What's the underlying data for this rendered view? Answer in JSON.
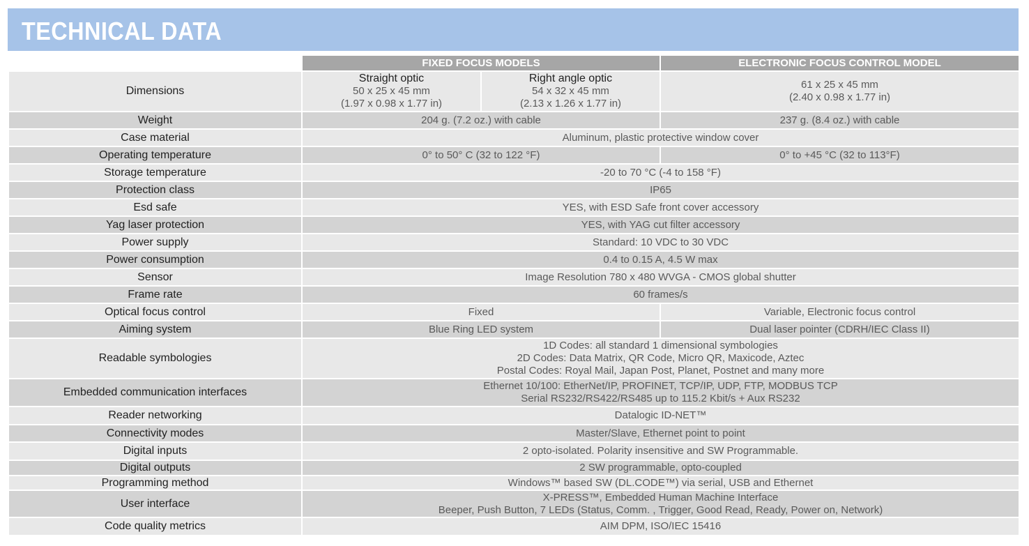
{
  "title": "TECHNICAL DATA",
  "headers": {
    "fixed": "FIXED FOCUS MODELS",
    "electronic": "ELECTRONIC FOCUS CONTROL MODEL"
  },
  "colors": {
    "banner": "#a6c3e8",
    "header": "#a6a6a6",
    "row_light": "#e8e8e8",
    "row_dark": "#d3d3d3"
  },
  "rows": [
    {
      "label": "Dimensions",
      "cells": [
        {
          "span": 1,
          "title": "Straight optic",
          "lines": [
            "50 x 25 x 45 mm",
            "(1.97 x 0.98 x 1.77 in)"
          ]
        },
        {
          "span": 1,
          "title": "Right angle optic",
          "lines": [
            "54 x 32 x 45 mm",
            "(2.13 x 1.26 x 1.77 in)"
          ]
        },
        {
          "span": 1,
          "lines": [
            "61 x 25 x 45 mm",
            "(2.40 x 0.98 x 1.77 in)"
          ]
        }
      ]
    },
    {
      "label": "Weight",
      "cells": [
        {
          "span": 2,
          "lines": [
            "204 g. (7.2 oz.) with cable"
          ]
        },
        {
          "span": 1,
          "lines": [
            "237 g. (8.4 oz.) with cable"
          ]
        }
      ]
    },
    {
      "label": "Case material",
      "cells": [
        {
          "span": 3,
          "lines": [
            "Aluminum, plastic protective window cover"
          ]
        }
      ]
    },
    {
      "label": "Operating temperature",
      "cells": [
        {
          "span": 2,
          "lines": [
            "0° to 50° C (32 to 122 °F)"
          ]
        },
        {
          "span": 1,
          "lines": [
            "0° to +45 °C (32 to 113°F)"
          ]
        }
      ]
    },
    {
      "label": "Storage temperature",
      "cells": [
        {
          "span": 3,
          "lines": [
            "-20 to 70 °C (-4 to 158 °F)"
          ]
        }
      ]
    },
    {
      "label": "Protection class",
      "cells": [
        {
          "span": 3,
          "lines": [
            "IP65"
          ]
        }
      ]
    },
    {
      "label": "Esd safe",
      "cells": [
        {
          "span": 3,
          "lines": [
            "YES, with ESD Safe front cover accessory"
          ]
        }
      ]
    },
    {
      "label": "Yag laser protection",
      "cells": [
        {
          "span": 3,
          "lines": [
            "YES, with YAG cut filter accessory"
          ]
        }
      ]
    },
    {
      "label": "Power supply",
      "cells": [
        {
          "span": 3,
          "lines": [
            "Standard: 10 VDC to 30 VDC"
          ]
        }
      ]
    },
    {
      "label": "Power consumption",
      "cells": [
        {
          "span": 3,
          "lines": [
            "0.4 to 0.15 A, 4.5 W max"
          ]
        }
      ]
    },
    {
      "label": "Sensor",
      "cells": [
        {
          "span": 3,
          "lines": [
            "Image Resolution 780 x 480 WVGA -  CMOS global shutter"
          ]
        }
      ]
    },
    {
      "label": "Frame rate",
      "cells": [
        {
          "span": 3,
          "lines": [
            "60 frames/s"
          ]
        }
      ]
    },
    {
      "label": "Optical focus control",
      "cells": [
        {
          "span": 2,
          "lines": [
            "Fixed"
          ]
        },
        {
          "span": 1,
          "lines": [
            "Variable,  Electronic focus control"
          ]
        }
      ]
    },
    {
      "label": "Aiming system",
      "cells": [
        {
          "span": 2,
          "lines": [
            "Blue Ring LED system"
          ]
        },
        {
          "span": 1,
          "lines": [
            "Dual laser pointer (CDRH/IEC Class II)"
          ]
        }
      ]
    },
    {
      "label": "Readable symbologies",
      "cells": [
        {
          "span": 3,
          "lines": [
            "1D Codes:  all standard 1 dimensional symbologies",
            "2D Codes: Data Matrix, QR Code, Micro QR, Maxicode, Aztec",
            "Postal Codes: Royal Mail, Japan Post, Planet, Postnet and many more"
          ]
        }
      ]
    },
    {
      "label": "Embedded communication interfaces",
      "cells": [
        {
          "span": 3,
          "lines": [
            "Ethernet 10/100: EtherNet/IP, PROFINET, TCP/IP, UDP, FTP, MODBUS TCP",
            "Serial RS232/RS422/RS485 up to 115.2 Kbit/s + Aux RS232"
          ]
        }
      ]
    },
    {
      "label": "Reader networking",
      "cells": [
        {
          "span": 3,
          "lines": [
            "Datalogic ID-NET™"
          ]
        }
      ]
    },
    {
      "label": "Connectivity modes",
      "cells": [
        {
          "span": 3,
          "lines": [
            "Master/Slave, Ethernet point to point"
          ]
        }
      ]
    },
    {
      "label": "Digital inputs",
      "cells": [
        {
          "span": 3,
          "lines": [
            "2 opto-isolated. Polarity insensitive and SW Programmable."
          ]
        }
      ]
    },
    {
      "label": "Digital outputs",
      "cells": [
        {
          "span": 3,
          "lines": [
            "2 SW programmable, opto-coupled"
          ]
        }
      ]
    },
    {
      "label": "Programming method",
      "cells": [
        {
          "span": 3,
          "lines": [
            "Windows™ based SW (DL.CODE™) via serial, USB and Ethernet"
          ]
        }
      ]
    },
    {
      "label": "User interface",
      "cells": [
        {
          "span": 3,
          "lines": [
            "X-PRESS™, Embedded Human Machine Interface",
            "Beeper, Push Button, 7 LEDs (Status, Comm. , Trigger, Good Read, Ready, Power on, Network)"
          ]
        }
      ]
    },
    {
      "label": "Code quality metrics",
      "cells": [
        {
          "span": 3,
          "lines": [
            "AIM DPM, ISO/IEC 15416"
          ]
        }
      ]
    }
  ]
}
